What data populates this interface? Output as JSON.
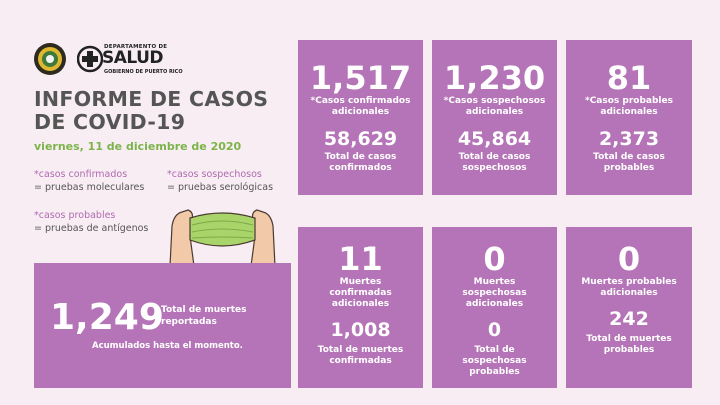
{
  "header": {
    "dept_line": "DEPARTAMENTO DE",
    "salud": "SALUD",
    "gov_line": "GOBIERNO DE PUERTO RICO",
    "title": "INFORME DE CASOS DE COVID-19",
    "date": "viernes, 11 de diciembre de 2020"
  },
  "legend": [
    {
      "key": "*casos confirmados",
      "value": "= pruebas moleculares"
    },
    {
      "key": "*casos sospechosos",
      "value": "= pruebas serológicas"
    },
    {
      "key": "*casos probables",
      "value": "= pruebas de antígenos"
    }
  ],
  "cards_top": [
    {
      "big": "1,517",
      "big_label": "*Casos confirmados adicionales",
      "total": "58,629",
      "total_label": "Total de casos confirmados"
    },
    {
      "big": "1,230",
      "big_label": "*Casos sospechosos adicionales",
      "total": "45,864",
      "total_label": "Total de casos sospechosos"
    },
    {
      "big": "81",
      "big_label": "*Casos probables adicionales",
      "total": "2,373",
      "total_label": "Total de casos probables"
    }
  ],
  "cards_bottom": [
    {
      "big": "11",
      "big_label": "Muertes confirmadas adicionales",
      "total": "1,008",
      "total_label": "Total de muertes confirmadas"
    },
    {
      "big": "0",
      "big_label": "Muertes sospechosas adicionales",
      "total": "0",
      "total_label": "Total de sospechosas probables"
    },
    {
      "big": "0",
      "big_label": "Muertes probables adicionales",
      "total": "242",
      "total_label": "Total de muertes probables"
    }
  ],
  "deaths_total": {
    "value": "1,249",
    "label": "Total de muertes reportadas",
    "note": "Acumulados hasta el momento."
  },
  "colors": {
    "card": "#b574b7",
    "background": "#f7edf3",
    "date_green": "#7cb44a",
    "mask_green": "#a9d46a"
  }
}
